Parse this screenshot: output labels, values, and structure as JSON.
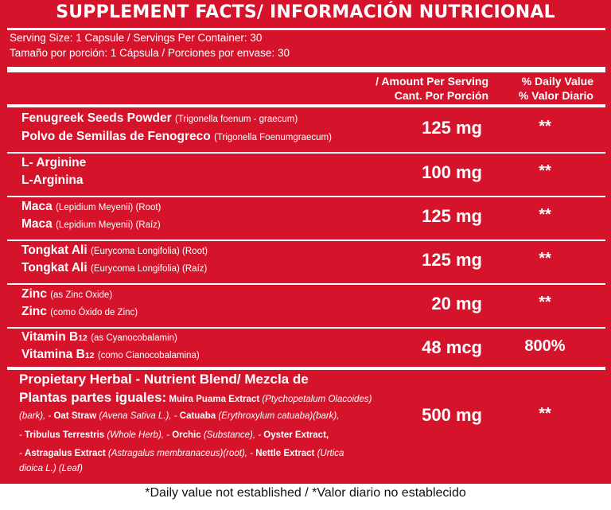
{
  "title": "SUPPLEMENT FACTS/ INFORMACIÓN NUTRICIONAL",
  "serving_en": "Serving Size: 1 Capsule / Servings Per Container: 30",
  "serving_es": "Tamaño por porción: 1 Cápsula / Porciones por envase: 30",
  "header": {
    "amount_en": "/ Amount Per Serving",
    "amount_es": "Cant. Por Porción",
    "dv_en": "% Daily Value",
    "dv_es": "% Valor Diario"
  },
  "rows": [
    {
      "name_en": "Fenugreek Seeds Powder",
      "sub_en": "(Trigonella foenum - graecum)",
      "name_es": "Polvo de Semillas de Fenogreco",
      "sub_es": "(Trigonella Foenumgraecum)",
      "amount": "125 mg",
      "dv": "**"
    },
    {
      "name_en": "L- Arginine",
      "sub_en": "",
      "name_es": "L-Arginina",
      "sub_es": "",
      "amount": "100 mg",
      "dv": "**"
    },
    {
      "name_en": "Maca",
      "sub_en": "(Lepidium Meyenii) (Root)",
      "name_es": "Maca",
      "sub_es": "(Lepidium Meyenii) (Raíz)",
      "amount": "125 mg",
      "dv": "**"
    },
    {
      "name_en": "Tongkat Ali",
      "sub_en": "(Eurycoma Longifolia) (Root)",
      "name_es": "Tongkat Ali",
      "sub_es": "(Eurycoma Longifolia) (Raíz)",
      "amount": "125 mg",
      "dv": "**"
    },
    {
      "name_en": "Zinc",
      "sub_en": "(as Zinc Oxide)",
      "name_es": "Zinc",
      "sub_es": "(como Óxido de Zinc)",
      "amount": "20 mg",
      "dv": "**"
    },
    {
      "name_en": "Vitamin B",
      "name_en_sub": "12",
      "sub_en": "(as Cyanocobalamin)",
      "name_es": "Vitamina B",
      "name_es_sub": "12",
      "sub_es": "(como Cianocobalamina)",
      "amount": "48 mcg",
      "dv": "800%"
    }
  ],
  "blend": {
    "title_line1": "Propietary Herbal - Nutrient Blend/ Mezcla de",
    "title_line2": "Plantas partes iguales:",
    "l2_b1": "Muira Puama Extract",
    "l2_t1": "(Ptychopetalum Olacoides)",
    "l3_t1": "(bark), -",
    "l3_b1": "Oat Straw",
    "l3_t2": "(Avena Sativa L.), -",
    "l3_b2": "Catuaba",
    "l3_t3": "(Erythroxylum catuaba)(bark),",
    "l4_t1": "-",
    "l4_b1": "Tribulus Terrestris",
    "l4_t2": "(Whole Herb), -",
    "l4_b2": "Orchic",
    "l4_t3": "(Substance), -",
    "l4_b3": "Oyster Extract,",
    "l5_t1": "-",
    "l5_b1": "Astragalus Extract",
    "l5_t2": "(Astragalus membranaceus)(root), -",
    "l5_b2": "Nettle Extract",
    "l5_t3": "(Urtica",
    "l6_t1": "dioica L.) (Leaf)",
    "amount": "500 mg",
    "dv": "**"
  },
  "footnote": "*Daily value not established / *Valor diario no establecido",
  "colors": {
    "panel": "#d5142b",
    "text": "#ffffff",
    "footnote": "#111111"
  }
}
